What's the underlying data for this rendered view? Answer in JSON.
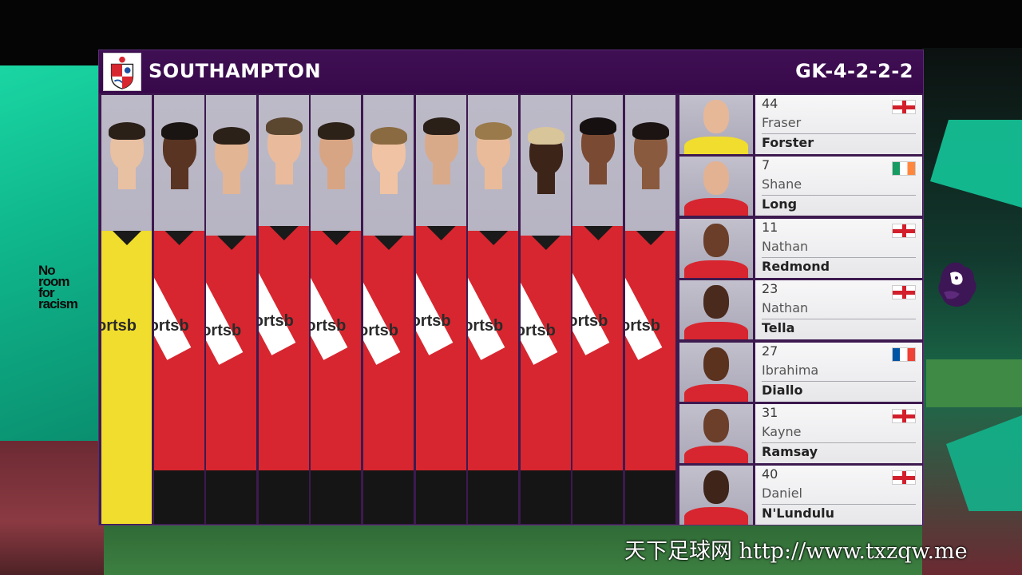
{
  "header": {
    "team_name": "SOUTHAMPTON",
    "formation": "GK-4-2-2-2",
    "crest_icon": "southampton-crest-icon"
  },
  "campaign": {
    "lines": [
      "No",
      "room",
      "for",
      "racism"
    ]
  },
  "starting_photos": [
    {
      "kit": "gk",
      "skin": "#e8c0a2",
      "hair": "#2a2018"
    },
    {
      "kit": "outfield",
      "skin": "#5a3422",
      "hair": "#1a1412"
    },
    {
      "kit": "outfield",
      "skin": "#e2b595",
      "hair": "#2b2118"
    },
    {
      "kit": "outfield",
      "skin": "#e9bb9c",
      "hair": "#5b4630"
    },
    {
      "kit": "outfield",
      "skin": "#d8a584",
      "hair": "#2d2218"
    },
    {
      "kit": "outfield",
      "skin": "#efc3a4",
      "hair": "#8a6a40"
    },
    {
      "kit": "outfield",
      "skin": "#d9aa8a",
      "hair": "#2a2018"
    },
    {
      "kit": "outfield",
      "skin": "#e9bb9a",
      "hair": "#9a7a4a"
    },
    {
      "kit": "outfield",
      "skin": "#3c2419",
      "hair": "#d8c59a"
    },
    {
      "kit": "outfield",
      "skin": "#7b4a32",
      "hair": "#161010"
    },
    {
      "kit": "outfield",
      "skin": "#8a5a3e",
      "hair": "#1b1412"
    }
  ],
  "substitutes": [
    {
      "number": "44",
      "first": "Fraser",
      "last": "Forster",
      "flag": "eng",
      "skin": "#e6b898",
      "kit": "#f0dd2e"
    },
    {
      "number": "7",
      "first": "Shane",
      "last": "Long",
      "flag": "irl",
      "skin": "#e2b292",
      "kit": "#d7262f"
    },
    {
      "number": "11",
      "first": "Nathan",
      "last": "Redmond",
      "flag": "eng",
      "skin": "#6a3e28",
      "kit": "#d7262f"
    },
    {
      "number": "23",
      "first": "Nathan",
      "last": "Tella",
      "flag": "eng",
      "skin": "#4a2a1c",
      "kit": "#d7262f"
    },
    {
      "number": "27",
      "first": "Ibrahima",
      "last": "Diallo",
      "flag": "fra",
      "skin": "#5a321e",
      "kit": "#d7262f"
    },
    {
      "number": "31",
      "first": "Kayne",
      "last": "Ramsay",
      "flag": "eng",
      "skin": "#6b3f2a",
      "kit": "#d7262f"
    },
    {
      "number": "40",
      "first": "Daniel",
      "last": "N'Lundulu",
      "flag": "eng",
      "skin": "#3e2419",
      "kit": "#d7262f"
    }
  ],
  "colors": {
    "panel": "#3d1a4f",
    "header": "#3f0f53",
    "home_red": "#d7262f",
    "gk_yellow": "#f0dd2e"
  },
  "sponsor_fragment": "ortsb",
  "watermark": "天下足球网 http://www.txzqw.me",
  "league_logo_icon": "premier-league-lion-icon"
}
